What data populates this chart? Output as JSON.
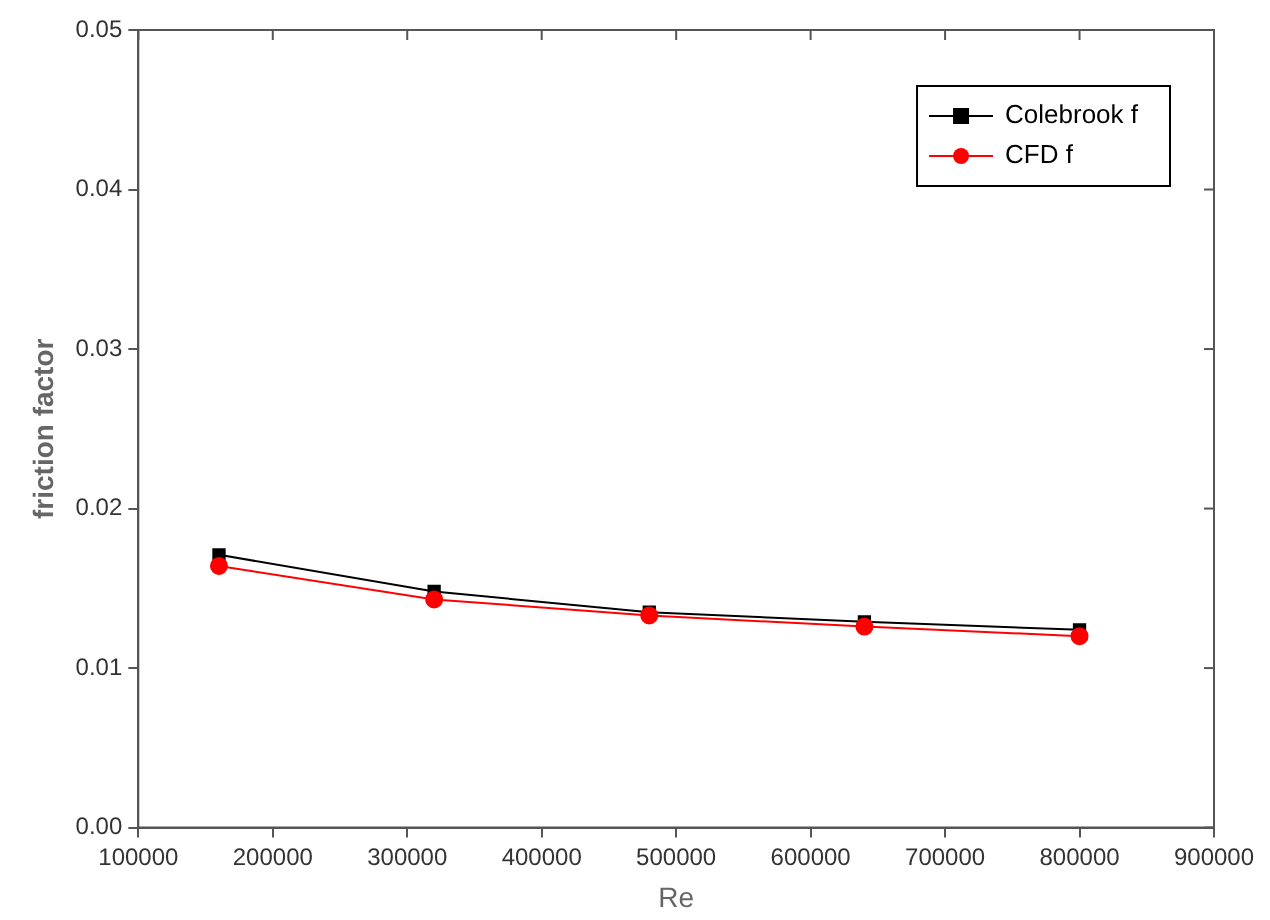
{
  "chart_data": {
    "type": "line",
    "xlabel": "Re",
    "ylabel": "friction factor",
    "x": [
      160000,
      320000,
      480000,
      640000,
      800000
    ],
    "series": [
      {
        "name": "Colebrook f",
        "color": "#000000",
        "marker": "square",
        "values": [
          0.0171,
          0.0148,
          0.0135,
          0.0129,
          0.0124
        ]
      },
      {
        "name": "CFD f",
        "color": "#ff0000",
        "marker": "circle",
        "values": [
          0.0164,
          0.0143,
          0.0133,
          0.0126,
          0.012
        ]
      }
    ],
    "xlim": [
      100000,
      900000
    ],
    "xticks": [
      100000,
      200000,
      300000,
      400000,
      500000,
      600000,
      700000,
      800000,
      900000
    ],
    "ylim": [
      0,
      0.05
    ],
    "yticks": [
      {
        "value": 0,
        "label": "0.00"
      },
      {
        "value": 0.01,
        "label": "0.01"
      },
      {
        "value": 0.02,
        "label": "0.02"
      },
      {
        "value": 0.03,
        "label": "0.03"
      },
      {
        "value": 0.04,
        "label": "0.04"
      },
      {
        "value": 0.05,
        "label": "0.05"
      }
    ],
    "grid": false,
    "legend": "top right"
  }
}
